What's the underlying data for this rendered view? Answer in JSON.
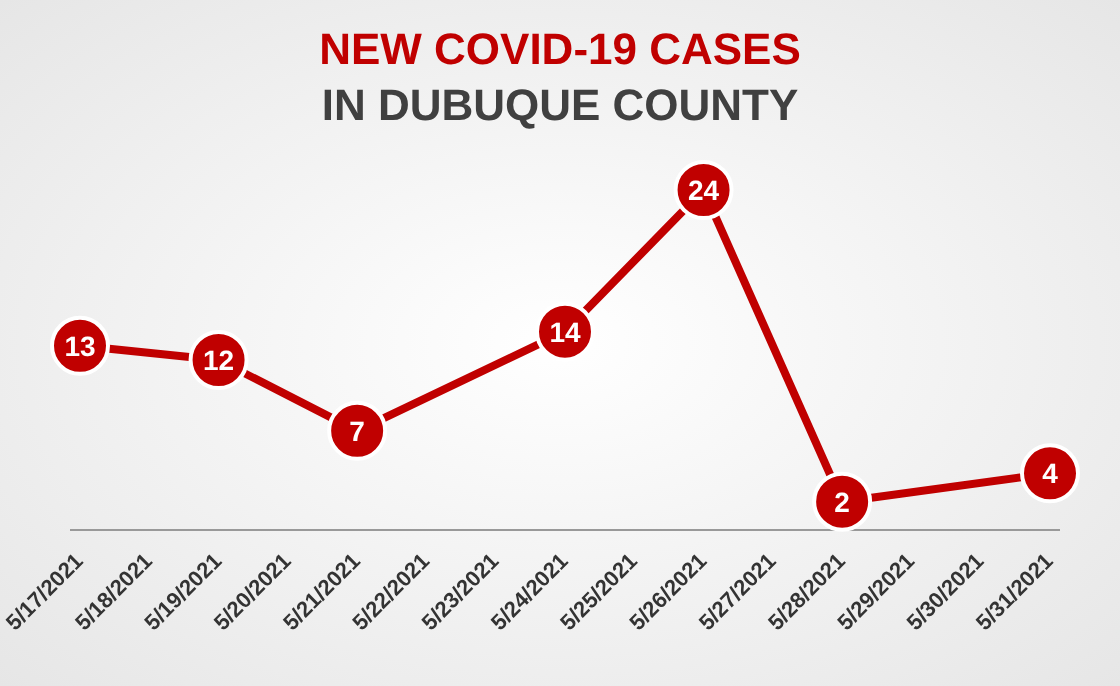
{
  "chart_data": {
    "type": "line",
    "title": "NEW COVID-19 CASES",
    "subtitle": "IN DUBUQUE COUNTY",
    "categories": [
      "5/17/2021",
      "5/18/2021",
      "5/19/2021",
      "5/20/2021",
      "5/21/2021",
      "5/22/2021",
      "5/23/2021",
      "5/24/2021",
      "5/25/2021",
      "5/26/2021",
      "5/27/2021",
      "5/28/2021",
      "5/29/2021",
      "5/30/2021",
      "5/31/2021"
    ],
    "series": [
      {
        "color": "#c00000",
        "values": [
          13,
          null,
          12,
          null,
          7,
          null,
          null,
          14,
          null,
          24,
          null,
          2,
          null,
          null,
          4
        ]
      }
    ],
    "data_labels": true,
    "marker": "circle",
    "line_style": "solid"
  }
}
